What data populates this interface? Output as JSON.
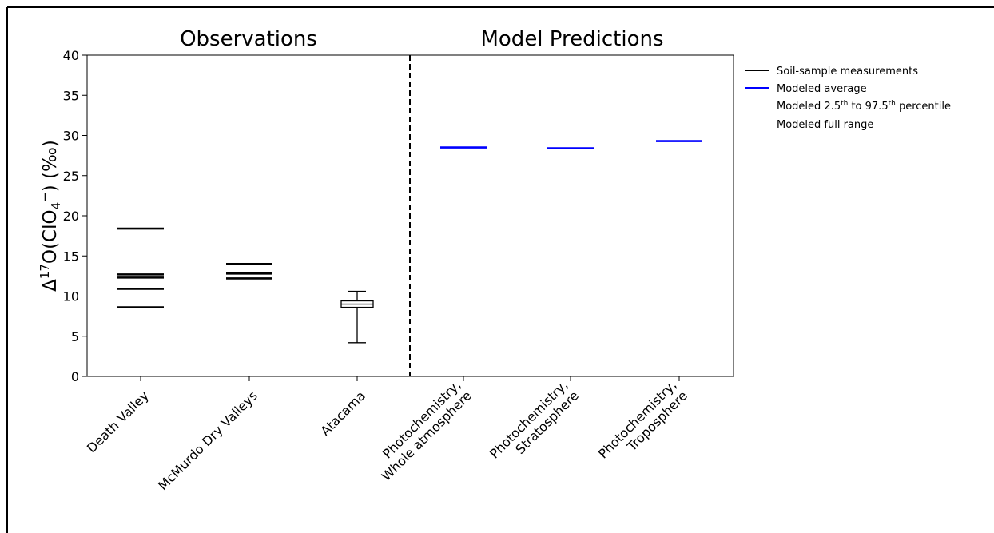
{
  "chart_data": {
    "type": "scatter",
    "section_titles": [
      "Observations",
      "Model Predictions"
    ],
    "categories": [
      [
        "Death Valley"
      ],
      [
        "McMurdo Dry Valleys"
      ],
      [
        "Atacama"
      ],
      [
        "Photochemistry,",
        "Whole atmosphere"
      ],
      [
        "Photochemistry,",
        "Stratosphere"
      ],
      [
        "Photochemistry,",
        "Troposphere"
      ]
    ],
    "ylabel": {
      "base": "Δ",
      "sup1": "17",
      "mid": "O(ClO",
      "sub": "4",
      "sup2": "−",
      "tail": ") (‰)"
    },
    "ylim": [
      0,
      40
    ],
    "yticks": [
      0,
      5,
      10,
      15,
      20,
      25,
      30,
      35,
      40
    ],
    "grid": false,
    "legend_position": "right-outside",
    "series": [
      {
        "name": "Soil-sample measurements",
        "color": "#000000",
        "points": [
          {
            "category": 0,
            "values": [
              18.4,
              12.7,
              12.3,
              10.9,
              8.6
            ]
          },
          {
            "category": 1,
            "values": [
              14.0,
              12.8,
              12.2
            ]
          }
        ]
      },
      {
        "name": "Modeled average",
        "color": "#0000ff",
        "points": [
          {
            "category": 3,
            "value": 28.5
          },
          {
            "category": 4,
            "value": 28.4
          },
          {
            "category": 5,
            "value": 29.3
          }
        ]
      }
    ],
    "boxplot": {
      "category": 2,
      "whisker_low": 4.2,
      "q1": 8.6,
      "median": 9.0,
      "q3": 9.4,
      "whisker_high": 10.6
    },
    "legend": [
      {
        "label": "Soil-sample measurements",
        "color": "#000000"
      },
      {
        "label": "Modeled average",
        "color": "#0000ff"
      },
      {
        "label_parts": [
          "Modeled 2.5",
          "th",
          " to 97.5",
          "th",
          " percentile"
        ],
        "color": null
      },
      {
        "label": "Modeled full range",
        "color": null
      }
    ]
  }
}
